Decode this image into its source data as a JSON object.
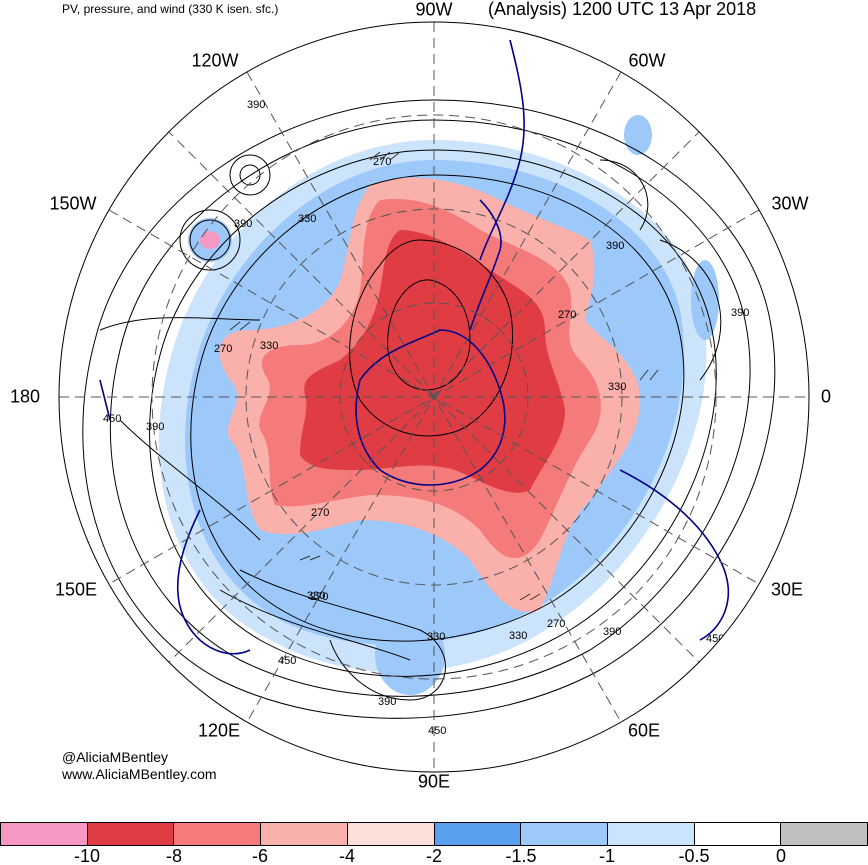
{
  "header": {
    "left_title": "PV, pressure, and wind (330 K isen. sfc.)",
    "right_title": "(Analysis) 1200 UTC 13 Apr 2018"
  },
  "longitude_labels": {
    "top": "90W",
    "upper_left": "120W",
    "upper_right": "60W",
    "left_upper": "150W",
    "right_upper": "30W",
    "left": "180",
    "right": "0",
    "left_lower": "150E",
    "right_lower": "30E",
    "lower_left": "120E",
    "lower_right": "60E",
    "bottom": "90E"
  },
  "contour_labels": [
    "390",
    "270",
    "330",
    "390",
    "390",
    "270",
    "330",
    "450",
    "390",
    "330",
    "270",
    "390",
    "270",
    "330",
    "270",
    "450",
    "330",
    "330",
    "270",
    "390",
    "450",
    "390",
    "450"
  ],
  "credits": {
    "handle": "@AliciaMBentley",
    "website": "www.AliciaMBentley.com"
  },
  "colorbar": {
    "colors": [
      "#f598c3",
      "#e03c44",
      "#f57a7a",
      "#fbb1ab",
      "#fde0d9",
      "#5aa0f0",
      "#9cc8fa",
      "#cce3fc",
      "#ffffff",
      "#c0c0c0"
    ],
    "ticks": [
      "-10",
      "-8",
      "-6",
      "-4",
      "-2",
      "-1.5",
      "-1",
      "-0.5",
      "0"
    ]
  }
}
